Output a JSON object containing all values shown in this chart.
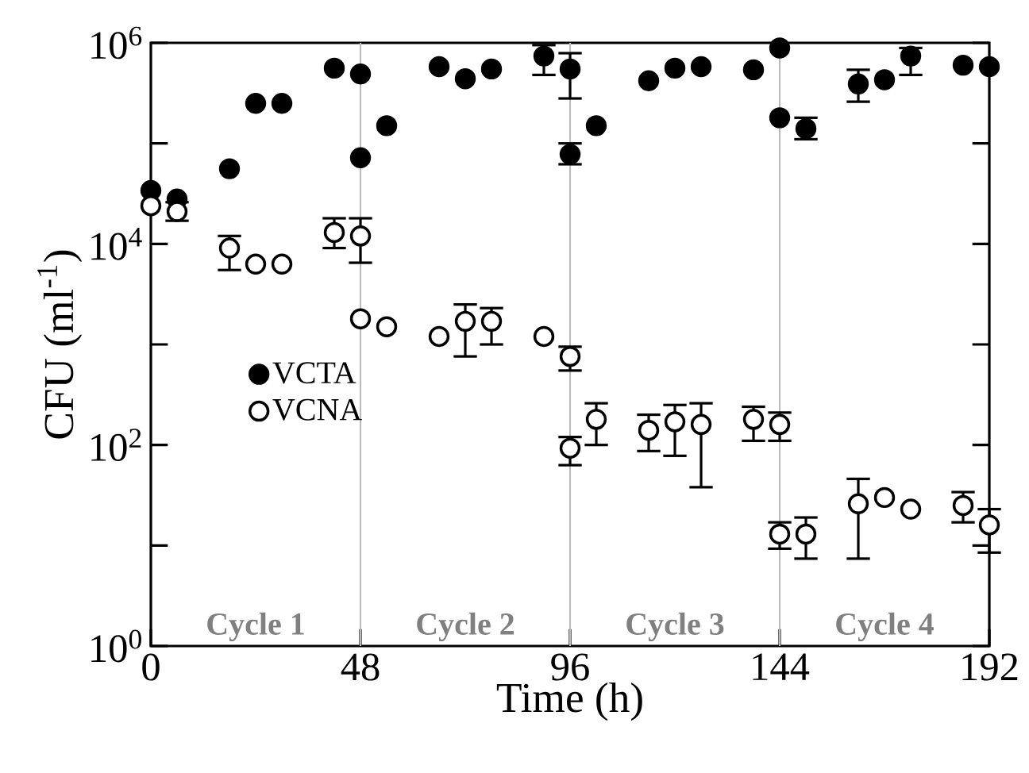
{
  "chart_data": {
    "type": "scatter",
    "xlabel": "Time (h)",
    "ylabel": "CFU (ml$^{-1}$)",
    "log": "y",
    "marker": "circle",
    "legend": "left",
    "grid": false,
    "xlim": [
      0,
      192
    ],
    "xticks": [
      0,
      48,
      96,
      144,
      192
    ],
    "ylim": [
      1,
      1000000
    ],
    "yticks": [
      {
        "value": 1,
        "label": "10$^{0}$"
      },
      {
        "value": 10,
        "label": null
      },
      {
        "value": 100,
        "label": "10$^{2}$"
      },
      {
        "value": 1000,
        "label": null
      },
      {
        "value": 10000,
        "label": "10$^{4}$"
      },
      {
        "value": 100000,
        "label": null
      },
      {
        "value": 1000000,
        "label": "10$^{6}$"
      }
    ],
    "ref_lines": [
      {
        "axis": "x",
        "value": 48,
        "color": "#bbbbbb"
      },
      {
        "axis": "x",
        "value": 96,
        "color": "#bbbbbb"
      },
      {
        "axis": "x",
        "value": 144,
        "color": "#bbbbbb"
      }
    ],
    "annotations": [
      "Cycle 1",
      "Cycle 2",
      "Cycle 3",
      "Cycle 4"
    ],
    "series": [
      {
        "name": "VCTA",
        "color": "#000000",
        "x": [
          0,
          6,
          18,
          24,
          30,
          42,
          48,
          48,
          54,
          66,
          72,
          78,
          90,
          96,
          96,
          102,
          114,
          120,
          126,
          138,
          144,
          144,
          150,
          162,
          168,
          174,
          186,
          192
        ],
        "values": [
          34000,
          28000,
          56000,
          250000,
          250000,
          560000,
          490000,
          72000,
          150000,
          580000,
          440000,
          550000,
          740000,
          550000,
          78000,
          150000,
          420000,
          560000,
          580000,
          540000,
          890000,
          180000,
          140000,
          390000,
          430000,
          740000,
          600000,
          580000
        ],
        "errors": [
          null,
          null,
          null,
          null,
          null,
          null,
          null,
          null,
          null,
          null,
          null,
          null,
          [
            480000,
            950000
          ],
          [
            280000,
            790000
          ],
          [
            62000,
            100000
          ],
          null,
          null,
          null,
          null,
          null,
          null,
          null,
          [
            110000,
            180000
          ],
          [
            260000,
            540000
          ],
          null,
          [
            480000,
            890000
          ],
          null,
          null
        ]
      },
      {
        "name": "VCNA",
        "color": "#ffffff",
        "x": [
          0,
          6,
          18,
          24,
          30,
          42,
          48,
          48,
          54,
          66,
          72,
          78,
          90,
          96,
          96,
          102,
          114,
          120,
          126,
          138,
          144,
          144,
          150,
          162,
          168,
          174,
          186,
          192
        ],
        "values": [
          24000,
          21000,
          9100,
          6300,
          6300,
          13000,
          12000,
          1800,
          1500,
          1200,
          1700,
          1700,
          1200,
          760,
          93,
          180,
          140,
          170,
          160,
          180,
          160,
          13,
          13,
          26,
          30,
          23,
          25,
          16
        ],
        "errors": [
          null,
          [
            17000,
            26000
          ],
          [
            5500,
            12000
          ],
          null,
          null,
          [
            9100,
            18000
          ],
          [
            6500,
            18000
          ],
          null,
          null,
          null,
          [
            760,
            2500
          ],
          [
            1000,
            2300
          ],
          null,
          [
            550,
            950
          ],
          [
            63,
            120
          ],
          [
            100,
            260
          ],
          [
            87,
            200
          ],
          [
            78,
            250
          ],
          [
            38,
            260
          ],
          [
            110,
            240
          ],
          [
            110,
            210
          ],
          [
            9.3,
            17
          ],
          [
            7.4,
            19
          ],
          [
            7.4,
            46
          ],
          null,
          null,
          [
            17,
            34
          ],
          [
            8.5,
            23
          ]
        ]
      }
    ]
  }
}
